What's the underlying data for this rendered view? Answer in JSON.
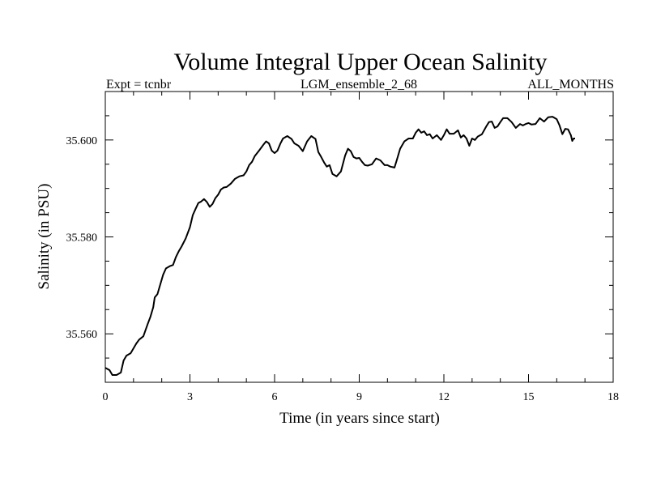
{
  "chart_data": {
    "type": "line",
    "title": "Volume Integral Upper Ocean Salinity",
    "subtitle_left": "Expt = tcnbr",
    "subtitle_center": "LGM_ensemble_2_68",
    "subtitle_right": "ALL_MONTHS",
    "xlabel": "Time (in years since start)",
    "ylabel": "Salinity (in PSU)",
    "xlim": [
      0,
      18
    ],
    "ylim": [
      35.55,
      35.61
    ],
    "xticks": [
      0,
      3,
      6,
      9,
      12,
      15,
      18
    ],
    "xtick_labels": [
      "0",
      "3",
      "6",
      "9",
      "12",
      "15",
      "18"
    ],
    "yticks": [
      35.56,
      35.58,
      35.6
    ],
    "ytick_labels": [
      "35.560",
      "35.580",
      "35.600"
    ],
    "x_minor_step": 1,
    "y_minor_step": 0.005,
    "series": [
      {
        "name": "Salinity",
        "color": "#000000",
        "x": [
          0.0,
          0.15,
          0.25,
          0.4,
          0.55,
          0.65,
          0.75,
          0.9,
          1.0,
          1.1,
          1.2,
          1.35,
          1.5,
          1.6,
          1.7,
          1.75,
          1.85,
          1.95,
          2.05,
          2.15,
          2.3,
          2.4,
          2.5,
          2.6,
          2.7,
          2.85,
          3.0,
          3.1,
          3.2,
          3.3,
          3.4,
          3.5,
          3.6,
          3.7,
          3.8,
          3.9,
          4.0,
          4.1,
          4.2,
          4.3,
          4.45,
          4.6,
          4.75,
          4.9,
          5.0,
          5.1,
          5.2,
          5.3,
          5.45,
          5.6,
          5.7,
          5.8,
          5.9,
          6.0,
          6.1,
          6.2,
          6.3,
          6.45,
          6.6,
          6.7,
          6.85,
          7.0,
          7.15,
          7.3,
          7.45,
          7.55,
          7.65,
          7.75,
          7.85,
          7.95,
          8.05,
          8.2,
          8.35,
          8.5,
          8.6,
          8.7,
          8.8,
          8.9,
          9.0,
          9.1,
          9.2,
          9.3,
          9.45,
          9.6,
          9.75,
          9.9,
          10.0,
          10.1,
          10.25,
          10.35,
          10.45,
          10.6,
          10.75,
          10.9,
          11.0,
          11.1,
          11.2,
          11.3,
          11.4,
          11.5,
          11.6,
          11.75,
          11.9,
          12.0,
          12.1,
          12.2,
          12.35,
          12.5,
          12.6,
          12.7,
          12.8,
          12.9,
          13.0,
          13.1,
          13.2,
          13.35,
          13.5,
          13.6,
          13.7,
          13.8,
          13.9,
          14.0,
          14.1,
          14.25,
          14.4,
          14.55,
          14.7,
          14.8,
          14.9,
          15.0,
          15.1,
          15.25,
          15.4,
          15.55,
          15.7,
          15.85,
          16.0,
          16.1,
          16.2,
          16.3,
          16.4,
          16.5,
          16.55,
          16.6,
          16.65
        ],
        "y": [
          35.553,
          35.5525,
          35.5515,
          35.5515,
          35.552,
          35.5545,
          35.5555,
          35.556,
          35.557,
          35.558,
          35.5588,
          35.5595,
          35.562,
          35.5635,
          35.5655,
          35.5675,
          35.5682,
          35.5702,
          35.5722,
          35.5735,
          35.574,
          35.5742,
          35.5758,
          35.577,
          35.578,
          35.5797,
          35.582,
          35.5845,
          35.5858,
          35.587,
          35.5873,
          35.5878,
          35.5872,
          35.5862,
          35.5868,
          35.588,
          35.5887,
          35.5898,
          35.5902,
          35.5903,
          35.591,
          35.592,
          35.5925,
          35.5927,
          35.5935,
          35.5948,
          35.5955,
          35.5967,
          35.5978,
          35.599,
          35.5997,
          35.5993,
          35.5978,
          35.5973,
          35.5978,
          35.5992,
          35.6003,
          35.6008,
          35.6002,
          35.5993,
          35.5988,
          35.5977,
          35.5997,
          35.6008,
          35.6002,
          35.5975,
          35.5965,
          35.5954,
          35.5945,
          35.5948,
          35.593,
          35.5925,
          35.5935,
          35.5968,
          35.5982,
          35.5977,
          35.5965,
          35.5962,
          35.5963,
          35.5955,
          35.5948,
          35.5947,
          35.595,
          35.5962,
          35.5958,
          35.5948,
          35.5948,
          35.5945,
          35.5943,
          35.5962,
          35.5982,
          35.5997,
          35.6003,
          35.6003,
          35.6015,
          35.6022,
          35.6015,
          35.6018,
          35.601,
          35.6012,
          35.6003,
          35.601,
          35.6,
          35.601,
          35.6022,
          35.6013,
          35.6013,
          35.602,
          35.6005,
          35.601,
          35.6003,
          35.5988,
          35.6003,
          35.6,
          35.6007,
          35.6012,
          35.6028,
          35.6037,
          35.6038,
          35.6025,
          35.6028,
          35.6037,
          35.6045,
          35.6045,
          35.6037,
          35.6025,
          35.6033,
          35.603,
          35.6033,
          35.6035,
          35.6032,
          35.6033,
          35.6045,
          35.6038,
          35.6047,
          35.6048,
          35.6043,
          35.603,
          35.6012,
          35.6023,
          35.6022,
          35.601,
          35.5998,
          35.6003,
          35.6003
        ]
      }
    ]
  }
}
